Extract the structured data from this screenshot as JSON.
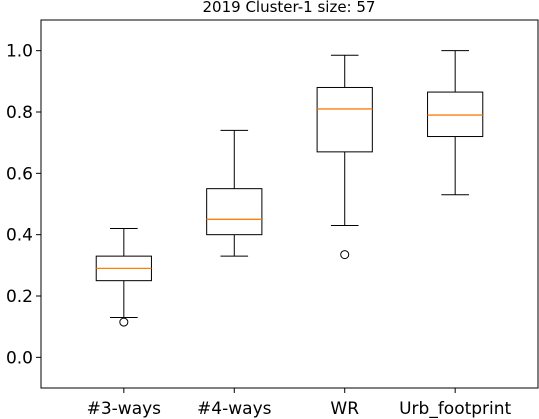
{
  "chart_data": {
    "type": "boxplot",
    "title": "2019 Cluster-1 size: 57",
    "xlabel": "",
    "ylabel": "",
    "ylim": [
      -0.1,
      1.1
    ],
    "yticks": [
      0.0,
      0.2,
      0.4,
      0.6,
      0.8,
      1.0
    ],
    "ytick_labels": [
      "0.0",
      "0.2",
      "0.4",
      "0.6",
      "0.8",
      "1.0"
    ],
    "categories": [
      "#3-ways",
      "#4-ways",
      "WR",
      "Urb_footprint"
    ],
    "boxes": [
      {
        "name": "#3-ways",
        "whisker_low": 0.13,
        "q1": 0.25,
        "median": 0.29,
        "q3": 0.33,
        "whisker_high": 0.42,
        "outliers": [
          0.115
        ]
      },
      {
        "name": "#4-ways",
        "whisker_low": 0.33,
        "q1": 0.4,
        "median": 0.45,
        "q3": 0.55,
        "whisker_high": 0.74,
        "outliers": []
      },
      {
        "name": "WR",
        "whisker_low": 0.43,
        "q1": 0.67,
        "median": 0.81,
        "q3": 0.88,
        "whisker_high": 0.985,
        "outliers": [
          0.335
        ]
      },
      {
        "name": "Urb_footprint",
        "whisker_low": 0.53,
        "q1": 0.72,
        "median": 0.79,
        "q3": 0.865,
        "whisker_high": 1.0,
        "outliers": []
      }
    ],
    "grid": false,
    "legend": "none",
    "colors": {
      "box": "#000000",
      "median": "#ff7f0e",
      "whisker": "#000000",
      "outlier": "#000000"
    }
  }
}
